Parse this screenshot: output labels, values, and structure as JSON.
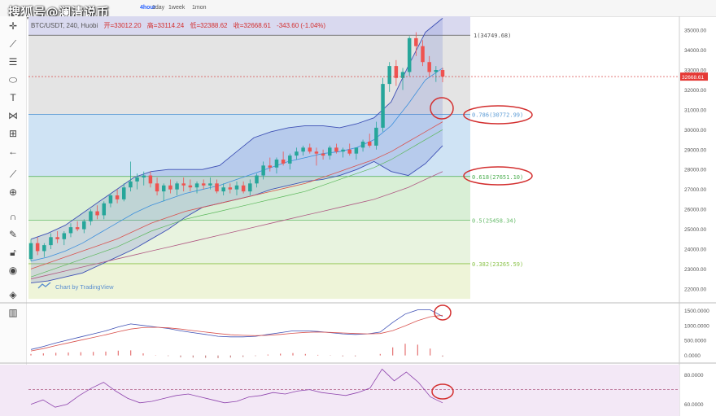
{
  "watermark": "搜狐号@澜清说币",
  "timeframes": [
    {
      "label": "4hour",
      "active": true
    },
    {
      "label": "1day",
      "active": false
    },
    {
      "label": "1week",
      "active": false
    },
    {
      "label": "1mon",
      "active": false
    }
  ],
  "tools": [
    "cursor-icon",
    "trend-line-icon",
    "horizontal-lines-icon",
    "ellipse-icon",
    "text-icon",
    "pattern-icon",
    "fib-icon",
    "arrow-icon",
    "ruler-icon",
    "zoom-icon",
    "magnet-icon",
    "lock-drawings-icon",
    "lock-icon",
    "eye-icon",
    "layers-icon",
    "trash-icon"
  ],
  "header": {
    "symbol": "BTC/USDT, 240, Huobi",
    "open": "开=33012.20",
    "high": "高=33114.24",
    "low": "低=32388.62",
    "close": "收=32668.61",
    "change": "-343.60 (-1.04%)"
  },
  "credit": "Chart by TradingView",
  "colors": {
    "up": "#26a69a",
    "down": "#ef5350",
    "band": "#3f51b5",
    "circle": "#d32f2f"
  },
  "chart_data": {
    "type": "candlestick",
    "y_ticks": [
      22000,
      23000,
      24000,
      25000,
      26000,
      27000,
      28000,
      29000,
      30000,
      31000,
      32000,
      33000,
      34000,
      35000
    ],
    "y_tick_labels": [
      "22000.00",
      "23000.00",
      "24000.00",
      "25000.00",
      "26000.00",
      "27000.00",
      "28000.00",
      "29000.00",
      "30000.00",
      "31000.00",
      "32000.00",
      "33000.00",
      "34000.00",
      "35000.00"
    ],
    "ylim": [
      21300,
      35700
    ],
    "last_price": 32668.61,
    "last_price_label": "32668.61",
    "fib_levels": [
      {
        "ratio": 1,
        "price": 34749.68,
        "label": "1(34749.68)"
      },
      {
        "ratio": 0.786,
        "price": 30772.99,
        "label": "0.786(30772.99)"
      },
      {
        "ratio": 0.618,
        "price": 27651.1,
        "label": "0.618(27651.10)"
      },
      {
        "ratio": 0.5,
        "price": 25458.34,
        "label": "0.5(25458.34)"
      },
      {
        "ratio": 0.382,
        "price": 23265.59,
        "label": "0.382(23265.59)"
      }
    ],
    "candles": [
      [
        23500,
        24500,
        23400,
        24300
      ],
      [
        24300,
        24600,
        23700,
        23900
      ],
      [
        23900,
        24300,
        23600,
        24200
      ],
      [
        24200,
        24800,
        24000,
        24600
      ],
      [
        24600,
        24900,
        24300,
        24500
      ],
      [
        24500,
        24900,
        24200,
        24800
      ],
      [
        24800,
        25300,
        24600,
        25100
      ],
      [
        25100,
        25400,
        24900,
        25000
      ],
      [
        25000,
        25500,
        24800,
        25400
      ],
      [
        25400,
        26000,
        25200,
        25900
      ],
      [
        25900,
        26200,
        25500,
        25700
      ],
      [
        25700,
        26400,
        25500,
        26300
      ],
      [
        26300,
        26800,
        26100,
        26700
      ],
      [
        26700,
        27000,
        26300,
        26500
      ],
      [
        26500,
        27300,
        26400,
        27100
      ],
      [
        27100,
        28400,
        26900,
        27400
      ],
      [
        27400,
        27800,
        27000,
        27600
      ],
      [
        27600,
        27900,
        27200,
        27700
      ],
      [
        27700,
        27900,
        27100,
        27300
      ],
      [
        27300,
        27600,
        26700,
        26900
      ],
      [
        26900,
        27300,
        26400,
        27200
      ],
      [
        27200,
        27500,
        26800,
        27000
      ],
      [
        27000,
        27400,
        26700,
        27300
      ],
      [
        27300,
        27600,
        26900,
        27200
      ],
      [
        27200,
        27500,
        26900,
        27100
      ],
      [
        27100,
        27400,
        26800,
        27300
      ],
      [
        27300,
        27500,
        27000,
        27200
      ],
      [
        27200,
        27600,
        27000,
        27300
      ],
      [
        27300,
        27500,
        26800,
        26900
      ],
      [
        26900,
        27300,
        26700,
        27100
      ],
      [
        27100,
        27300,
        26800,
        27000
      ],
      [
        27000,
        27400,
        26700,
        27200
      ],
      [
        27200,
        27400,
        26800,
        26900
      ],
      [
        26900,
        27500,
        26700,
        27300
      ],
      [
        27300,
        27800,
        27100,
        27700
      ],
      [
        27700,
        28400,
        27500,
        28200
      ],
      [
        28200,
        28600,
        27900,
        28100
      ],
      [
        28100,
        28600,
        27800,
        28500
      ],
      [
        28500,
        28900,
        28200,
        28300
      ],
      [
        28300,
        28800,
        28000,
        28700
      ],
      [
        28700,
        29100,
        28500,
        28900
      ],
      [
        28900,
        29200,
        28700,
        29100
      ],
      [
        29100,
        29300,
        28800,
        28900
      ],
      [
        28900,
        29100,
        28200,
        28800
      ],
      [
        28800,
        29000,
        28500,
        28700
      ],
      [
        28700,
        29200,
        28500,
        29100
      ],
      [
        29100,
        29300,
        28800,
        28900
      ],
      [
        28900,
        29100,
        28600,
        29000
      ],
      [
        29000,
        29300,
        28700,
        28800
      ],
      [
        28800,
        29100,
        28500,
        29100
      ],
      [
        29100,
        29500,
        28900,
        29400
      ],
      [
        29400,
        29800,
        29100,
        29200
      ],
      [
        29200,
        30400,
        29000,
        30100
      ],
      [
        30100,
        32600,
        29900,
        32300
      ],
      [
        32300,
        33400,
        31900,
        33200
      ],
      [
        33200,
        33500,
        32200,
        32600
      ],
      [
        32600,
        33100,
        32000,
        32900
      ],
      [
        32900,
        34700,
        32700,
        34600
      ],
      [
        34600,
        34900,
        33700,
        34200
      ],
      [
        34200,
        34500,
        33200,
        33400
      ],
      [
        33400,
        33700,
        32700,
        32900
      ],
      [
        32900,
        33200,
        32400,
        33000
      ],
      [
        33000,
        33114,
        32388,
        32669
      ]
    ],
    "bollinger": {
      "upper": [
        24500,
        24800,
        25200,
        25800,
        26400,
        27000,
        27600,
        27900,
        28000,
        28000,
        28000,
        28200,
        28900,
        29600,
        29900,
        30100,
        30200,
        30200,
        30100,
        30300,
        30600,
        31400,
        33200,
        34900,
        35600
      ],
      "middle": [
        23400,
        23600,
        23900,
        24300,
        24800,
        25300,
        25800,
        26200,
        26500,
        26800,
        27000,
        27200,
        27500,
        27800,
        28100,
        28400,
        28600,
        28800,
        28900,
        29100,
        29500,
        30200,
        31300,
        32500,
        33100
      ],
      "lower": [
        22300,
        22400,
        22600,
        22800,
        23200,
        23600,
        24000,
        24500,
        25000,
        25600,
        26100,
        26300,
        26500,
        26700,
        27000,
        27200,
        27400,
        27500,
        27700,
        28000,
        28400,
        27900,
        27700,
        28300,
        29200
      ]
    },
    "ma_slow": [
      23000,
      23300,
      23600,
      23900,
      24200,
      24500,
      24900,
      25300,
      25600,
      25900,
      26100,
      26300,
      26500,
      26700,
      26900,
      27100,
      27300,
      27600,
      27900,
      28200,
      28500,
      28900,
      29400,
      29900,
      30400
    ],
    "ma_long": [
      22500,
      22700,
      22900,
      23100,
      23300,
      23500,
      23700,
      23900,
      24100,
      24300,
      24500,
      24700,
      24900,
      25100,
      25300,
      25500,
      25700,
      25900,
      26100,
      26300,
      26500,
      26800,
      27100,
      27500,
      27900
    ],
    "macd": {
      "y_tick_labels": [
        "1500.0000",
        "1000.0000",
        "500.0000",
        "0.0000"
      ],
      "ylim": [
        -200,
        1700
      ],
      "dif": [
        200,
        300,
        420,
        520,
        620,
        720,
        820,
        950,
        1050,
        1000,
        950,
        900,
        820,
        760,
        700,
        640,
        620,
        620,
        640,
        700,
        760,
        820,
        820,
        800,
        760,
        720,
        700,
        720,
        780,
        1100,
        1380,
        1520,
        1520,
        1300
      ],
      "dea": [
        150,
        230,
        330,
        420,
        510,
        600,
        690,
        790,
        880,
        930,
        940,
        920,
        880,
        830,
        780,
        730,
        690,
        670,
        660,
        670,
        700,
        740,
        770,
        780,
        770,
        750,
        730,
        720,
        730,
        830,
        990,
        1160,
        1290,
        1340
      ],
      "hist": [
        50,
        70,
        90,
        100,
        110,
        120,
        130,
        160,
        170,
        70,
        10,
        -20,
        -60,
        -70,
        -80,
        -90,
        -70,
        -50,
        -20,
        30,
        60,
        80,
        50,
        20,
        -10,
        -30,
        -30,
        0,
        50,
        270,
        390,
        360,
        230,
        -40
      ]
    },
    "rsi": {
      "y_tick_labels": [
        "80.0000",
        "60.0000"
      ],
      "ylim": [
        52,
        87
      ],
      "values": [
        60,
        63,
        58,
        60,
        66,
        71,
        75,
        69,
        64,
        61,
        62,
        64,
        66,
        67,
        65,
        63,
        61,
        62,
        65,
        66,
        68,
        67,
        69,
        70,
        68,
        67,
        66,
        68,
        71,
        84,
        76,
        82,
        75,
        65,
        61
      ],
      "level": 70
    }
  }
}
